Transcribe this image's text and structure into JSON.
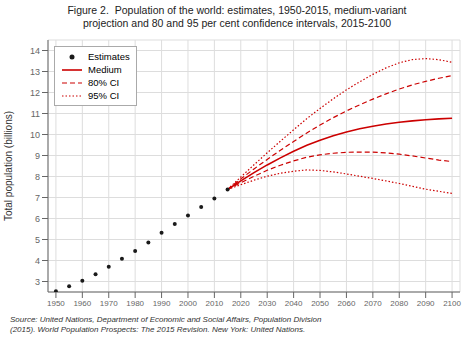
{
  "chart_data": {
    "type": "line",
    "title": "Figure 2.  Population of the world: estimates, 1950-2015, medium-variant\nprojection and 80 and 95 per cent confidence intervals, 2015-2100",
    "ylabel": "Total population (billions)",
    "annotations": [
      "Source: United Nations, Department of Economic and Social Affairs, Population Division\n(2015). World Population Prospects: The 2015 Revision. New York: United Nations."
    ],
    "xlim": [
      1947,
      2103
    ],
    "ylim": [
      2.5,
      14.5
    ],
    "xticks": [
      1950,
      1960,
      1970,
      1980,
      1990,
      2000,
      2010,
      2020,
      2030,
      2040,
      2050,
      2060,
      2070,
      2080,
      2090,
      2100
    ],
    "yticks": [
      3,
      4,
      5,
      6,
      7,
      8,
      9,
      10,
      11,
      12,
      13,
      14
    ],
    "grid": true,
    "legend": "upper left",
    "series": [
      {
        "name": "Estimates",
        "type": "scatter",
        "marker": "o",
        "color": "#1a1a1a",
        "x": [
          1950,
          1955,
          1960,
          1965,
          1970,
          1975,
          1980,
          1985,
          1990,
          1995,
          2000,
          2005,
          2010,
          2015
        ],
        "values": [
          2.536,
          2.773,
          3.035,
          3.341,
          3.7,
          4.079,
          4.458,
          4.855,
          5.327,
          5.739,
          6.145,
          6.542,
          6.957,
          7.383
        ]
      },
      {
        "name": "Medium",
        "type": "line",
        "line_style": "solid",
        "color": "#cc0000",
        "x": [
          2015,
          2020,
          2025,
          2030,
          2035,
          2040,
          2045,
          2050,
          2055,
          2060,
          2065,
          2070,
          2075,
          2080,
          2085,
          2090,
          2095,
          2100
        ],
        "values": [
          7.383,
          7.795,
          8.184,
          8.551,
          8.888,
          9.198,
          9.483,
          9.725,
          9.938,
          10.119,
          10.271,
          10.397,
          10.5,
          10.583,
          10.649,
          10.7,
          10.742,
          10.771
        ]
      },
      {
        "name": "80% CI",
        "type": "line",
        "line_style": "dashed",
        "color": "#cc0000",
        "x": [
          2015,
          2020,
          2025,
          2030,
          2035,
          2040,
          2045,
          2050,
          2055,
          2060,
          2065,
          2070,
          2075,
          2080,
          2085,
          2090,
          2095,
          2100
        ],
        "upper": [
          7.383,
          7.887,
          8.36,
          8.813,
          9.247,
          9.668,
          10.072,
          10.453,
          10.802,
          11.122,
          11.414,
          11.685,
          11.937,
          12.164,
          12.364,
          12.532,
          12.678,
          12.802
        ],
        "lower": [
          7.383,
          7.703,
          8.01,
          8.298,
          8.538,
          8.741,
          8.917,
          9.033,
          9.107,
          9.151,
          9.167,
          9.157,
          9.122,
          9.062,
          8.98,
          8.879,
          8.784,
          8.71
        ]
      },
      {
        "name": "95% CI",
        "type": "line",
        "line_style": "dotted",
        "color": "#cc0000",
        "x": [
          2015,
          2020,
          2025,
          2030,
          2035,
          2040,
          2045,
          2050,
          2055,
          2060,
          2065,
          2070,
          2075,
          2080,
          2085,
          2090,
          2095,
          2100
        ],
        "upper": [
          7.383,
          7.975,
          8.558,
          9.128,
          9.682,
          10.224,
          10.756,
          11.241,
          11.7,
          12.127,
          12.508,
          12.862,
          13.172,
          13.414,
          13.568,
          13.614,
          13.564,
          13.437
        ],
        "lower": [
          7.383,
          7.611,
          7.824,
          8.013,
          8.155,
          8.252,
          8.313,
          8.289,
          8.218,
          8.122,
          8.012,
          7.906,
          7.79,
          7.667,
          7.534,
          7.396,
          7.293,
          7.197
        ]
      }
    ]
  }
}
